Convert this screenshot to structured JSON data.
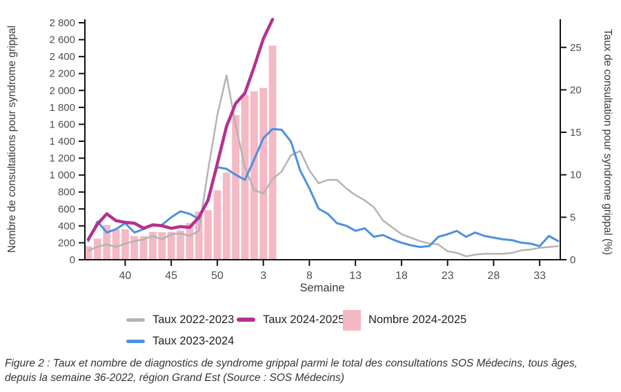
{
  "chart_data": {
    "type": "bar+line",
    "grid": false,
    "x_axis": {
      "label": "Semaine",
      "weeks": [
        36,
        37,
        38,
        39,
        40,
        41,
        42,
        43,
        44,
        45,
        46,
        47,
        48,
        49,
        50,
        51,
        52,
        1,
        2,
        3,
        4,
        5,
        6,
        7,
        8,
        9,
        10,
        11,
        12,
        13,
        14,
        15,
        16,
        17,
        18,
        19,
        20,
        21,
        22,
        23,
        24,
        25,
        26,
        27,
        28,
        29,
        30,
        31,
        32,
        33,
        34,
        35
      ],
      "tick_weeks": [
        40,
        45,
        50,
        3,
        8,
        13,
        18,
        23,
        28,
        33
      ]
    },
    "left_axis": {
      "label": "Nombre de consultations pour syndrome grippal",
      "min": 0,
      "max": 2800,
      "step": 200,
      "thousands_separator": " ",
      "applies_to": "bars"
    },
    "right_axis": {
      "label": "Taux de consultation pour syndrome grippal (%)",
      "min": 0,
      "max": 25,
      "step": 5,
      "applies_to": "lines"
    },
    "series": [
      {
        "name": "Nombre 2024-2025",
        "type": "bar",
        "axis": "left",
        "color": "#f5b8c5",
        "start_week": 36,
        "values": [
          160,
          250,
          410,
          360,
          360,
          280,
          280,
          330,
          325,
          330,
          345,
          435,
          570,
          585,
          820,
          1030,
          1710,
          1950,
          1990,
          2030,
          2530
        ]
      },
      {
        "name": "Taux 2022-2023",
        "type": "line",
        "axis": "right",
        "color": "#b3b3b3",
        "width": 2.5,
        "start_week": 36,
        "values": [
          1.1,
          1.5,
          1.8,
          1.5,
          1.9,
          2.2,
          2.4,
          2.8,
          2.4,
          3.0,
          3.1,
          2.8,
          3.4,
          10.5,
          17.0,
          21.7,
          15.8,
          10.9,
          8.2,
          7.8,
          9.5,
          10.4,
          12.3,
          12.8,
          10.5,
          9.0,
          9.4,
          9.4,
          8.4,
          7.6,
          7.0,
          6.2,
          4.6,
          3.8,
          3.0,
          2.6,
          2.2,
          1.9,
          1.8,
          1.0,
          0.8,
          0.4,
          0.6,
          0.7,
          0.7,
          0.7,
          0.8,
          1.1,
          1.2,
          1.4,
          1.5,
          1.6
        ]
      },
      {
        "name": "Taux 2023-2024",
        "type": "line",
        "axis": "right",
        "color": "#4a90e2",
        "width": 3,
        "start_week": 36,
        "values": [
          2.2,
          4.5,
          3.2,
          3.6,
          4.3,
          3.2,
          3.6,
          4.1,
          4.1,
          5.0,
          5.7,
          5.4,
          4.8,
          7.2,
          10.9,
          10.7,
          10.0,
          9.4,
          11.8,
          14.3,
          15.4,
          15.3,
          13.9,
          10.5,
          8.4,
          6.0,
          5.4,
          4.3,
          4.0,
          3.4,
          3.7,
          2.7,
          2.9,
          2.4,
          2.0,
          1.7,
          1.5,
          1.6,
          2.7,
          3.0,
          3.4,
          2.7,
          3.2,
          2.8,
          2.6,
          2.4,
          2.3,
          2.0,
          1.9,
          1.6,
          2.8,
          2.2
        ]
      },
      {
        "name": "Taux 2024-2025",
        "type": "line",
        "axis": "right",
        "color": "#b5318f",
        "width": 4.5,
        "start_week": 36,
        "values": [
          2.4,
          4.2,
          5.4,
          4.6,
          4.4,
          4.3,
          3.7,
          4.1,
          4.0,
          3.7,
          3.9,
          3.8,
          5.0,
          7.0,
          11.3,
          15.7,
          18.4,
          19.6,
          22.7,
          26.0,
          28.3
        ]
      }
    ]
  },
  "legend": {
    "items": [
      {
        "label": "Taux 2022-2023",
        "color": "#b3b3b3",
        "swatch": "line"
      },
      {
        "label": "Taux 2024-2025",
        "color": "#b5318f",
        "swatch": "line"
      },
      {
        "label": "Nombre 2024-2025",
        "color": "#f5b8c5",
        "swatch": "rect"
      },
      {
        "label": "Taux 2023-2024",
        "color": "#4a90e2",
        "swatch": "line"
      }
    ]
  },
  "caption": {
    "line1": "Figure 2 : Taux et nombre de diagnostics de syndrome grippal parmi le total des consultations SOS Médecins, tous âges,",
    "line2": "depuis la semaine 36-2022, région Grand Est (Source : SOS Médecins)"
  }
}
